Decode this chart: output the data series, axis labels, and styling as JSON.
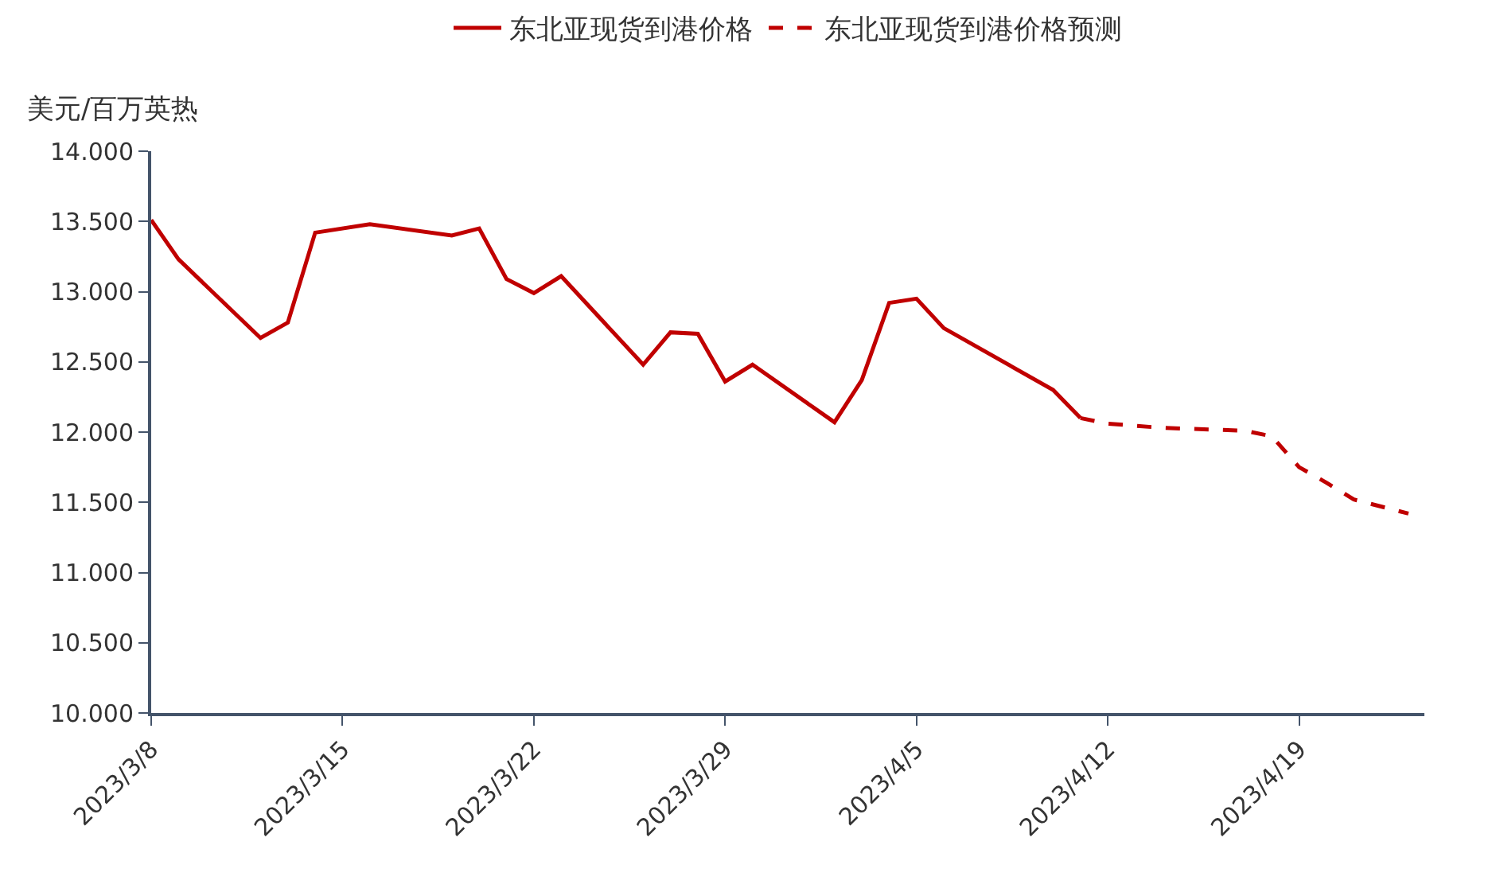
{
  "chart_data": {
    "type": "line",
    "ylabel": "美元/百万英热",
    "x": [
      "2023-03-08",
      "2023-03-09",
      "2023-03-12",
      "2023-03-13",
      "2023-03-14",
      "2023-03-16",
      "2023-03-19",
      "2023-03-20",
      "2023-03-21",
      "2023-03-22",
      "2023-03-23",
      "2023-03-26",
      "2023-03-27",
      "2023-03-28",
      "2023-03-29",
      "2023-03-30",
      "2023-04-02",
      "2023-04-03",
      "2023-04-04",
      "2023-04-05",
      "2023-04-06",
      "2023-04-10",
      "2023-04-11"
    ],
    "series": [
      {
        "name": "东北亚现货到港价格",
        "color": "#c00000",
        "line_style": "solid",
        "values": [
          13.51,
          13.23,
          12.67,
          12.78,
          13.42,
          13.48,
          13.4,
          13.45,
          13.09,
          12.99,
          13.11,
          12.48,
          12.71,
          12.7,
          12.36,
          12.48,
          12.07,
          12.37,
          12.92,
          12.95,
          12.74,
          12.3,
          12.1
        ]
      },
      {
        "name": "东北亚现货到港价格预测",
        "color": "#c00000",
        "line_style": "dashed",
        "x": [
          "2023-04-11",
          "2023-04-12",
          "2023-04-14",
          "2023-04-17",
          "2023-04-18",
          "2023-04-19",
          "2023-04-20",
          "2023-04-21",
          "2023-04-23"
        ],
        "values": [
          12.1,
          12.06,
          12.03,
          12.01,
          11.97,
          11.75,
          11.64,
          11.52,
          11.42
        ]
      }
    ],
    "xlim": [
      "2023-03-08",
      "2023-04-23T14:00"
    ],
    "xticks": [
      {
        "value": "2023-03-08",
        "label": "2023/3/8"
      },
      {
        "value": "2023-03-15",
        "label": "2023/3/15"
      },
      {
        "value": "2023-03-22",
        "label": "2023/3/22"
      },
      {
        "value": "2023-03-29",
        "label": "2023/3/29"
      },
      {
        "value": "2023-04-05",
        "label": "2023/4/5"
      },
      {
        "value": "2023-04-12",
        "label": "2023/4/12"
      },
      {
        "value": "2023-04-19",
        "label": "2023/4/19"
      }
    ],
    "ylim": [
      10,
      14
    ],
    "yticks": [
      {
        "value": 10,
        "label": "10.000"
      },
      {
        "value": 10.5,
        "label": "10.500"
      },
      {
        "value": 11,
        "label": "11.000"
      },
      {
        "value": 11.5,
        "label": "11.500"
      },
      {
        "value": 12,
        "label": "12.000"
      },
      {
        "value": 12.5,
        "label": "12.500"
      },
      {
        "value": 13,
        "label": "13.000"
      },
      {
        "value": 13.5,
        "label": "13.500"
      },
      {
        "value": 14,
        "label": "14.000"
      }
    ],
    "legend": "top",
    "marker": "none"
  }
}
